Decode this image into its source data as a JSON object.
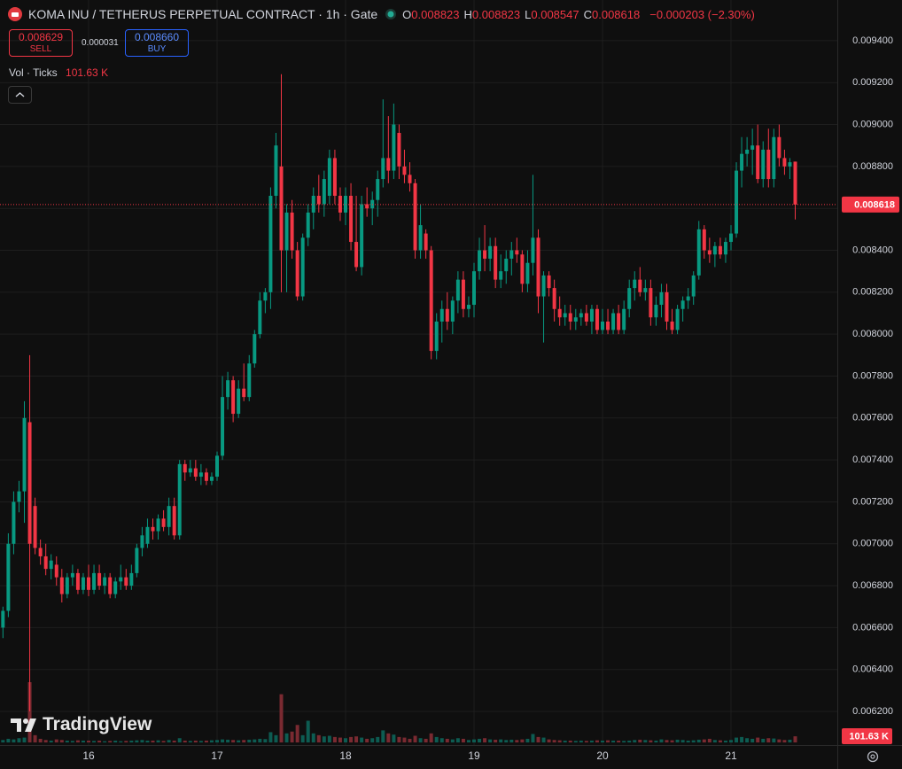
{
  "header": {
    "symbol": "KOMA INU / TETHERUS PERPETUAL CONTRACT · 1h · Gate",
    "ohlc": [
      {
        "key": "O",
        "value": "0.008823"
      },
      {
        "key": "H",
        "value": "0.008823"
      },
      {
        "key": "L",
        "value": "0.008547"
      },
      {
        "key": "C",
        "value": "0.008618"
      }
    ],
    "change": "−0.000203 (−2.30%)",
    "sell": {
      "price": "0.008629",
      "label": "SELL"
    },
    "spread": "0.000031",
    "buy": {
      "price": "0.008660",
      "label": "BUY"
    }
  },
  "watermark": "TradingView",
  "chart_data": {
    "type": "candlestick",
    "up_color": "#089981",
    "down_color": "#f23645",
    "grid": true,
    "xlim": [
      15.3103,
      21.8276
    ],
    "xticks": [
      16,
      17,
      18,
      19,
      20,
      21
    ],
    "ylim": [
      0.00601,
      0.009594
    ],
    "yticks": [
      {
        "value": 0.0062,
        "label": "0.006200"
      },
      {
        "value": 0.0064,
        "label": "0.006400"
      },
      {
        "value": 0.0066,
        "label": "0.006600"
      },
      {
        "value": 0.0068,
        "label": "0.006800"
      },
      {
        "value": 0.007,
        "label": "0.007000"
      },
      {
        "value": 0.0072,
        "label": "0.007200"
      },
      {
        "value": 0.0074,
        "label": "0.007400"
      },
      {
        "value": 0.0076,
        "label": "0.007600"
      },
      {
        "value": 0.0078,
        "label": "0.007800"
      },
      {
        "value": 0.008,
        "label": "0.008000"
      },
      {
        "value": 0.0082,
        "label": "0.008200"
      },
      {
        "value": 0.0084,
        "label": "0.008400"
      },
      {
        "value": 0.0086,
        "label": "0.008600"
      },
      {
        "value": 0.0088,
        "label": "0.008800"
      },
      {
        "value": 0.009,
        "label": "0.009000"
      },
      {
        "value": 0.0092,
        "label": "0.009200"
      },
      {
        "value": 0.0094,
        "label": "0.009400"
      }
    ],
    "last_price": {
      "value": 0.008618,
      "label": "0.008618"
    },
    "x": [
      15.3333,
      15.375,
      15.4167,
      15.4583,
      15.5,
      15.5417,
      15.5833,
      15.625,
      15.6667,
      15.7083,
      15.75,
      15.7917,
      15.8333,
      15.875,
      15.9167,
      15.9583,
      16,
      16.0417,
      16.0833,
      16.125,
      16.1667,
      16.2083,
      16.25,
      16.2917,
      16.3333,
      16.375,
      16.4167,
      16.4583,
      16.5,
      16.5417,
      16.5833,
      16.625,
      16.6667,
      16.7083,
      16.75,
      16.7917,
      16.8333,
      16.875,
      16.9167,
      16.9583,
      17,
      17.0417,
      17.0833,
      17.125,
      17.1667,
      17.2083,
      17.25,
      17.2917,
      17.3333,
      17.375,
      17.4167,
      17.4583,
      17.5,
      17.5417,
      17.5833,
      17.625,
      17.6667,
      17.7083,
      17.75,
      17.7917,
      17.8333,
      17.875,
      17.9167,
      17.9583,
      18,
      18.0417,
      18.0833,
      18.125,
      18.1667,
      18.2083,
      18.25,
      18.2917,
      18.3333,
      18.375,
      18.4167,
      18.4583,
      18.5,
      18.5417,
      18.5833,
      18.625,
      18.6667,
      18.7083,
      18.75,
      18.7917,
      18.8333,
      18.875,
      18.9167,
      18.9583,
      19,
      19.0417,
      19.0833,
      19.125,
      19.1667,
      19.2083,
      19.25,
      19.2917,
      19.3333,
      19.375,
      19.4167,
      19.4583,
      19.5,
      19.5417,
      19.5833,
      19.625,
      19.6667,
      19.7083,
      19.75,
      19.7917,
      19.8333,
      19.875,
      19.9167,
      19.9583,
      20,
      20.0417,
      20.0833,
      20.125,
      20.1667,
      20.2083,
      20.25,
      20.2917,
      20.3333,
      20.375,
      20.4167,
      20.4583,
      20.5,
      20.5417,
      20.5833,
      20.625,
      20.6667,
      20.7083,
      20.75,
      20.7917,
      20.8333,
      20.875,
      20.9167,
      20.9583,
      21,
      21.0417,
      21.0833,
      21.125,
      21.1667,
      21.2083,
      21.25,
      21.2917,
      21.3333,
      21.375,
      21.4167,
      21.4583,
      21.5
    ],
    "candles": [
      [
        0.0066,
        0.0067,
        0.00655,
        0.00668
      ],
      [
        0.00668,
        0.00705,
        0.00665,
        0.007
      ],
      [
        0.007,
        0.00725,
        0.00695,
        0.0072
      ],
      [
        0.0072,
        0.0073,
        0.00715,
        0.00725
      ],
      [
        0.00725,
        0.00768,
        0.0071,
        0.0076
      ],
      [
        0.00758,
        0.0079,
        0.0062,
        0.007
      ],
      [
        0.00718,
        0.00722,
        0.00695,
        0.00698
      ],
      [
        0.00698,
        0.00702,
        0.0069,
        0.00694
      ],
      [
        0.00694,
        0.007,
        0.00685,
        0.00688
      ],
      [
        0.00688,
        0.00695,
        0.00683,
        0.00692
      ],
      [
        0.0069,
        0.00694,
        0.0068,
        0.00684
      ],
      [
        0.00684,
        0.00688,
        0.00672,
        0.00676
      ],
      [
        0.00676,
        0.00686,
        0.00674,
        0.00684
      ],
      [
        0.00684,
        0.0069,
        0.0068,
        0.00686
      ],
      [
        0.00686,
        0.00688,
        0.00676,
        0.00678
      ],
      [
        0.00678,
        0.00686,
        0.00676,
        0.00684
      ],
      [
        0.00684,
        0.0069,
        0.00675,
        0.00678
      ],
      [
        0.00678,
        0.0069,
        0.00676,
        0.00686
      ],
      [
        0.00686,
        0.0069,
        0.00678,
        0.0068
      ],
      [
        0.0068,
        0.00686,
        0.00676,
        0.00684
      ],
      [
        0.00684,
        0.00686,
        0.00674,
        0.00676
      ],
      [
        0.00676,
        0.00684,
        0.00674,
        0.00682
      ],
      [
        0.00682,
        0.0069,
        0.00678,
        0.00684
      ],
      [
        0.00684,
        0.00688,
        0.00678,
        0.0068
      ],
      [
        0.0068,
        0.0069,
        0.00678,
        0.00686
      ],
      [
        0.00686,
        0.007,
        0.00684,
        0.00698
      ],
      [
        0.00698,
        0.00708,
        0.00694,
        0.00704
      ],
      [
        0.007,
        0.00712,
        0.00698,
        0.00708
      ],
      [
        0.00708,
        0.00712,
        0.00702,
        0.00706
      ],
      [
        0.00706,
        0.00714,
        0.00702,
        0.00712
      ],
      [
        0.00712,
        0.00716,
        0.00706,
        0.00708
      ],
      [
        0.00708,
        0.00722,
        0.00704,
        0.00718
      ],
      [
        0.00718,
        0.00722,
        0.00702,
        0.00704
      ],
      [
        0.00704,
        0.0074,
        0.00702,
        0.00738
      ],
      [
        0.00738,
        0.0074,
        0.0073,
        0.00734
      ],
      [
        0.00734,
        0.0074,
        0.00732,
        0.00736
      ],
      [
        0.00736,
        0.0074,
        0.0073,
        0.00732
      ],
      [
        0.00732,
        0.00738,
        0.00728,
        0.00734
      ],
      [
        0.00734,
        0.00736,
        0.00728,
        0.0073
      ],
      [
        0.0073,
        0.00734,
        0.00728,
        0.00732
      ],
      [
        0.00732,
        0.00744,
        0.0073,
        0.00742
      ],
      [
        0.00742,
        0.0078,
        0.0074,
        0.0077
      ],
      [
        0.0077,
        0.00782,
        0.00764,
        0.00778
      ],
      [
        0.00778,
        0.0078,
        0.00758,
        0.00762
      ],
      [
        0.00762,
        0.00778,
        0.0076,
        0.00774
      ],
      [
        0.00774,
        0.00786,
        0.00768,
        0.0077
      ],
      [
        0.0077,
        0.0079,
        0.00768,
        0.00786
      ],
      [
        0.00786,
        0.00802,
        0.00784,
        0.008
      ],
      [
        0.008,
        0.0082,
        0.00798,
        0.00816
      ],
      [
        0.00816,
        0.00822,
        0.0081,
        0.0082
      ],
      [
        0.0082,
        0.0087,
        0.00812,
        0.00866
      ],
      [
        0.00866,
        0.00896,
        0.0086,
        0.0089
      ],
      [
        0.0088,
        0.00924,
        0.0082,
        0.0084
      ],
      [
        0.0084,
        0.00862,
        0.0082,
        0.00858
      ],
      [
        0.00858,
        0.00864,
        0.00836,
        0.0084
      ],
      [
        0.0084,
        0.00844,
        0.00816,
        0.00818
      ],
      [
        0.00818,
        0.00848,
        0.00816,
        0.00846
      ],
      [
        0.00846,
        0.00862,
        0.00842,
        0.00858
      ],
      [
        0.00858,
        0.0087,
        0.0085,
        0.00866
      ],
      [
        0.00866,
        0.00876,
        0.00858,
        0.00862
      ],
      [
        0.00862,
        0.00878,
        0.00856,
        0.00874
      ],
      [
        0.00866,
        0.00888,
        0.00862,
        0.00884
      ],
      [
        0.00884,
        0.00888,
        0.00862,
        0.00866
      ],
      [
        0.00866,
        0.0087,
        0.00854,
        0.00858
      ],
      [
        0.00858,
        0.0087,
        0.00852,
        0.00866
      ],
      [
        0.00866,
        0.00872,
        0.0084,
        0.00844
      ],
      [
        0.00844,
        0.00866,
        0.0083,
        0.00832
      ],
      [
        0.00832,
        0.00866,
        0.00828,
        0.00862
      ],
      [
        0.00862,
        0.0087,
        0.00856,
        0.0086
      ],
      [
        0.0086,
        0.00868,
        0.00852,
        0.00864
      ],
      [
        0.00864,
        0.00878,
        0.00856,
        0.00874
      ],
      [
        0.00874,
        0.00912,
        0.0087,
        0.00884
      ],
      [
        0.00884,
        0.00904,
        0.00872,
        0.00878
      ],
      [
        0.00878,
        0.0091,
        0.00874,
        0.009
      ],
      [
        0.00896,
        0.009,
        0.00874,
        0.0088
      ],
      [
        0.0088,
        0.00888,
        0.00872,
        0.00876
      ],
      [
        0.00876,
        0.00882,
        0.00868,
        0.00872
      ],
      [
        0.00872,
        0.00874,
        0.00836,
        0.0084
      ],
      [
        0.0084,
        0.00862,
        0.00836,
        0.00852
      ],
      [
        0.00848,
        0.0085,
        0.00836,
        0.0084
      ],
      [
        0.0084,
        0.00842,
        0.00788,
        0.00792
      ],
      [
        0.00792,
        0.0081,
        0.00788,
        0.00806
      ],
      [
        0.00806,
        0.00816,
        0.00796,
        0.00812
      ],
      [
        0.00812,
        0.0082,
        0.00802,
        0.00806
      ],
      [
        0.00806,
        0.00818,
        0.008,
        0.00816
      ],
      [
        0.00816,
        0.0083,
        0.0081,
        0.00826
      ],
      [
        0.00826,
        0.0083,
        0.00808,
        0.00812
      ],
      [
        0.00812,
        0.00818,
        0.00808,
        0.00814
      ],
      [
        0.00814,
        0.00834,
        0.00808,
        0.0083
      ],
      [
        0.0083,
        0.00846,
        0.00826,
        0.0084
      ],
      [
        0.0084,
        0.00852,
        0.0083,
        0.00836
      ],
      [
        0.00836,
        0.00846,
        0.0083,
        0.00842
      ],
      [
        0.00842,
        0.00846,
        0.00822,
        0.00826
      ],
      [
        0.00826,
        0.00838,
        0.00822,
        0.0083
      ],
      [
        0.0083,
        0.0084,
        0.00824,
        0.00836
      ],
      [
        0.00836,
        0.00844,
        0.00828,
        0.0084
      ],
      [
        0.0084,
        0.00846,
        0.00834,
        0.00838
      ],
      [
        0.00838,
        0.0084,
        0.0082,
        0.00824
      ],
      [
        0.00824,
        0.0084,
        0.0082,
        0.00834
      ],
      [
        0.00834,
        0.00876,
        0.00828,
        0.00846
      ],
      [
        0.00846,
        0.0085,
        0.0081,
        0.00818
      ],
      [
        0.00818,
        0.0083,
        0.00796,
        0.00828
      ],
      [
        0.00828,
        0.0083,
        0.00818,
        0.00822
      ],
      [
        0.00822,
        0.00826,
        0.00806,
        0.00812
      ],
      [
        0.00812,
        0.00818,
        0.00804,
        0.00808
      ],
      [
        0.00808,
        0.00814,
        0.00804,
        0.0081
      ],
      [
        0.0081,
        0.00814,
        0.00802,
        0.00806
      ],
      [
        0.00806,
        0.00812,
        0.00802,
        0.00808
      ],
      [
        0.00808,
        0.00812,
        0.00804,
        0.0081
      ],
      [
        0.0081,
        0.00814,
        0.00804,
        0.00806
      ],
      [
        0.00806,
        0.00814,
        0.008,
        0.00812
      ],
      [
        0.00812,
        0.00814,
        0.008,
        0.00802
      ],
      [
        0.00802,
        0.00812,
        0.008,
        0.00806
      ],
      [
        0.00806,
        0.00812,
        0.008,
        0.00802
      ],
      [
        0.00802,
        0.00812,
        0.008,
        0.0081
      ],
      [
        0.0081,
        0.00814,
        0.008,
        0.00802
      ],
      [
        0.00802,
        0.00816,
        0.008,
        0.00812
      ],
      [
        0.00812,
        0.00826,
        0.00808,
        0.00822
      ],
      [
        0.00822,
        0.0083,
        0.00816,
        0.00826
      ],
      [
        0.00826,
        0.00832,
        0.00818,
        0.0082
      ],
      [
        0.0082,
        0.00826,
        0.00816,
        0.00822
      ],
      [
        0.00822,
        0.00826,
        0.00804,
        0.00808
      ],
      [
        0.00808,
        0.00818,
        0.00804,
        0.00814
      ],
      [
        0.00814,
        0.00824,
        0.00808,
        0.0082
      ],
      [
        0.0082,
        0.00824,
        0.00802,
        0.00806
      ],
      [
        0.00806,
        0.00812,
        0.008,
        0.00802
      ],
      [
        0.00802,
        0.00814,
        0.008,
        0.00812
      ],
      [
        0.00812,
        0.00818,
        0.00806,
        0.00816
      ],
      [
        0.00816,
        0.00822,
        0.00812,
        0.00818
      ],
      [
        0.00818,
        0.0083,
        0.00814,
        0.00828
      ],
      [
        0.00828,
        0.00854,
        0.00826,
        0.0085
      ],
      [
        0.0085,
        0.00852,
        0.00836,
        0.0084
      ],
      [
        0.0084,
        0.00846,
        0.00834,
        0.00838
      ],
      [
        0.00838,
        0.00844,
        0.00832,
        0.00842
      ],
      [
        0.00842,
        0.00846,
        0.00836,
        0.00838
      ],
      [
        0.00838,
        0.00846,
        0.00834,
        0.00844
      ],
      [
        0.00844,
        0.00852,
        0.0084,
        0.00848
      ],
      [
        0.00848,
        0.00882,
        0.00846,
        0.00878
      ],
      [
        0.00878,
        0.00894,
        0.0087,
        0.00886
      ],
      [
        0.00886,
        0.00894,
        0.0088,
        0.00888
      ],
      [
        0.00888,
        0.00898,
        0.00876,
        0.0089
      ],
      [
        0.0089,
        0.009,
        0.00872,
        0.00874
      ],
      [
        0.00874,
        0.00892,
        0.0087,
        0.00888
      ],
      [
        0.00888,
        0.00898,
        0.0087,
        0.00874
      ],
      [
        0.00874,
        0.00898,
        0.0087,
        0.00894
      ],
      [
        0.00894,
        0.009,
        0.0088,
        0.00884
      ],
      [
        0.00884,
        0.00888,
        0.00876,
        0.0088
      ],
      [
        0.0088,
        0.00884,
        0.00874,
        0.00882
      ],
      [
        0.008823,
        0.008823,
        0.008547,
        0.008618
      ]
    ],
    "volume": {
      "name": "Vol · Ticks",
      "last_label": "101.63 K",
      "values": [
        40,
        60,
        50,
        70,
        80,
        1000,
        120,
        60,
        40,
        30,
        50,
        40,
        30,
        25,
        35,
        30,
        30,
        25,
        30,
        20,
        25,
        30,
        20,
        25,
        30,
        35,
        40,
        30,
        30,
        35,
        25,
        40,
        30,
        70,
        30,
        25,
        30,
        25,
        30,
        35,
        40,
        50,
        45,
        40,
        35,
        40,
        45,
        50,
        60,
        55,
        170,
        120,
        800,
        150,
        180,
        290,
        120,
        360,
        150,
        120,
        100,
        110,
        90,
        80,
        70,
        90,
        100,
        80,
        60,
        70,
        90,
        200,
        150,
        130,
        90,
        80,
        60,
        110,
        70,
        60,
        150,
        90,
        70,
        60,
        50,
        70,
        60,
        40,
        50,
        60,
        70,
        50,
        45,
        50,
        40,
        45,
        40,
        50,
        60,
        140,
        90,
        80,
        50,
        40,
        35,
        30,
        30,
        25,
        30,
        25,
        30,
        35,
        30,
        35,
        30,
        30,
        25,
        30,
        40,
        45,
        40,
        35,
        30,
        50,
        40,
        35,
        45,
        40,
        30,
        35,
        45,
        50,
        60,
        40,
        35,
        30,
        40,
        80,
        90,
        70,
        60,
        80,
        60,
        70,
        65,
        50,
        40,
        45,
        101.63
      ]
    }
  }
}
